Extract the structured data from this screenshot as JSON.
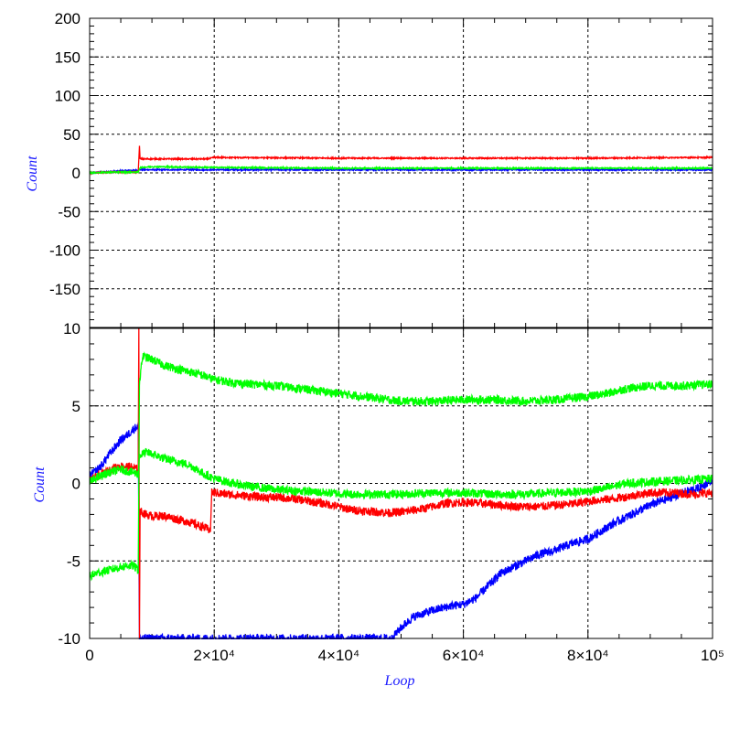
{
  "chart_data": [
    {
      "type": "line",
      "ylabel": "Count",
      "xlim": [
        0,
        100000
      ],
      "ylim": [
        -200,
        200
      ],
      "y_tick_labels": [
        "200",
        "150",
        "100",
        "50",
        "0",
        "-50",
        "-100",
        "-150"
      ],
      "y_ticks": [
        200,
        150,
        100,
        50,
        0,
        -50,
        -100,
        -150
      ],
      "grid": true,
      "series": [
        {
          "color": "#0000ff",
          "x": [
            0,
            2000,
            4000,
            6000,
            7800,
            8000,
            100000
          ],
          "y": [
            0,
            1,
            2,
            3,
            3.5,
            4,
            4
          ]
        },
        {
          "color": "#ff0000",
          "x": [
            0,
            4000,
            7800,
            8000,
            8100,
            19000,
            20000,
            40000,
            60000,
            80000,
            100000
          ],
          "y": [
            0,
            1,
            1,
            35,
            18,
            18,
            20,
            19,
            19,
            19,
            20
          ]
        },
        {
          "color": "#00ff00",
          "x": [
            0,
            4000,
            7800,
            8100,
            10000,
            20000,
            40000,
            60000,
            80000,
            100000
          ],
          "y": [
            0,
            1,
            1,
            7,
            8,
            7,
            6,
            6,
            6,
            6
          ]
        }
      ]
    },
    {
      "type": "line",
      "ylabel": "Count",
      "xlabel": "Loop",
      "xlim": [
        0,
        100000
      ],
      "ylim": [
        -10,
        10
      ],
      "x_tick_labels": [
        "0",
        "2×10⁴",
        "4×10⁴",
        "6×10⁴",
        "8×10⁴",
        "10⁵"
      ],
      "x_ticks": [
        0,
        20000,
        40000,
        60000,
        80000,
        100000
      ],
      "y_tick_labels": [
        "10",
        "5",
        "0",
        "-5",
        "-10"
      ],
      "y_ticks": [
        10,
        5,
        0,
        -5,
        -10
      ],
      "grid": true,
      "series": [
        {
          "color": "#0000ff",
          "x": [
            0,
            1000,
            2000,
            3000,
            4000,
            5000,
            6000,
            7000,
            7800,
            8000,
            48500,
            50000,
            52000,
            55000,
            58000,
            60000,
            62000,
            64000,
            66000,
            68000,
            70000,
            72000,
            74000,
            76000,
            78000,
            80000,
            82000,
            84000,
            86000,
            88000,
            90000,
            92000,
            94000,
            96000,
            98000,
            100000
          ],
          "y": [
            0.5,
            0.8,
            1.2,
            1.8,
            2.3,
            2.8,
            3.1,
            3.5,
            3.7,
            -10,
            -10,
            -9.3,
            -8.6,
            -8.2,
            -7.9,
            -7.8,
            -7.4,
            -6.6,
            -5.8,
            -5.4,
            -5.0,
            -4.6,
            -4.4,
            -4.1,
            -3.8,
            -3.6,
            -3.1,
            -2.6,
            -2.2,
            -1.8,
            -1.4,
            -1.1,
            -0.8,
            -0.5,
            -0.3,
            0.3
          ]
        },
        {
          "color": "#ff0000",
          "x": [
            0,
            1000,
            2000,
            3000,
            4000,
            5000,
            6000,
            7000,
            7800,
            7900,
            8000,
            8100,
            9000,
            10000,
            12000,
            14000,
            16000,
            18000,
            19400,
            19600,
            20000,
            22000,
            25000,
            28000,
            30000,
            33000,
            36000,
            39000,
            42000,
            45000,
            48000,
            51000,
            54000,
            57000,
            60000,
            63000,
            66000,
            69000,
            72000,
            75000,
            78000,
            81000,
            84000,
            87000,
            90000,
            94000,
            97000,
            100000
          ],
          "y": [
            0.2,
            0.4,
            0.6,
            0.8,
            1.0,
            1.1,
            1.1,
            1.0,
            0.9,
            10,
            -10,
            -1.8,
            -2.0,
            -2.1,
            -2.1,
            -2.3,
            -2.5,
            -2.8,
            -3.0,
            -0.6,
            -0.6,
            -0.7,
            -0.8,
            -0.9,
            -0.9,
            -1.0,
            -1.2,
            -1.4,
            -1.7,
            -1.8,
            -1.9,
            -1.8,
            -1.6,
            -1.3,
            -1.2,
            -1.3,
            -1.4,
            -1.5,
            -1.5,
            -1.4,
            -1.3,
            -1.1,
            -1.0,
            -0.8,
            -0.6,
            -0.6,
            -0.7,
            -0.6
          ]
        },
        {
          "color": "#00ff00",
          "x": [
            0,
            1000,
            2000,
            3000,
            4000,
            5000,
            6000,
            7000,
            7800,
            8000,
            9000,
            10000,
            12000,
            14000,
            16000,
            18000,
            20000,
            23000,
            26000,
            30000,
            34000,
            38000,
            42000,
            46000,
            50000,
            55000,
            60000,
            65000,
            70000,
            75000,
            80000,
            83000,
            86000,
            90000,
            95000,
            100000
          ],
          "y": [
            0.1,
            0.3,
            0.5,
            0.7,
            0.8,
            0.9,
            0.8,
            0.7,
            0.6,
            1.8,
            2.0,
            1.9,
            1.6,
            1.4,
            1.2,
            0.7,
            0.3,
            0.0,
            -0.2,
            -0.4,
            -0.5,
            -0.6,
            -0.7,
            -0.7,
            -0.7,
            -0.6,
            -0.6,
            -0.7,
            -0.7,
            -0.6,
            -0.5,
            -0.3,
            0.0,
            0.1,
            0.2,
            0.3
          ]
        },
        {
          "color": "#00ff00",
          "x": [
            0,
            1000,
            2000,
            3000,
            4000,
            5000,
            6000,
            7000,
            7800,
            8000,
            8500,
            10000,
            12000,
            14000,
            16000,
            18000,
            20000,
            23000,
            26000,
            30000,
            34000,
            38000,
            42000,
            46000,
            50000,
            55000,
            60000,
            65000,
            70000,
            75000,
            80000,
            83000,
            86000,
            90000,
            95000,
            100000
          ],
          "y": [
            -6.0,
            -5.8,
            -5.7,
            -5.6,
            -5.5,
            -5.4,
            -5.3,
            -5.3,
            -5.6,
            6.5,
            8.2,
            8.0,
            7.6,
            7.4,
            7.2,
            7.0,
            6.7,
            6.5,
            6.4,
            6.3,
            6.1,
            5.9,
            5.7,
            5.5,
            5.3,
            5.3,
            5.4,
            5.4,
            5.3,
            5.4,
            5.6,
            5.8,
            6.1,
            6.3,
            6.3,
            6.4
          ]
        }
      ]
    }
  ]
}
